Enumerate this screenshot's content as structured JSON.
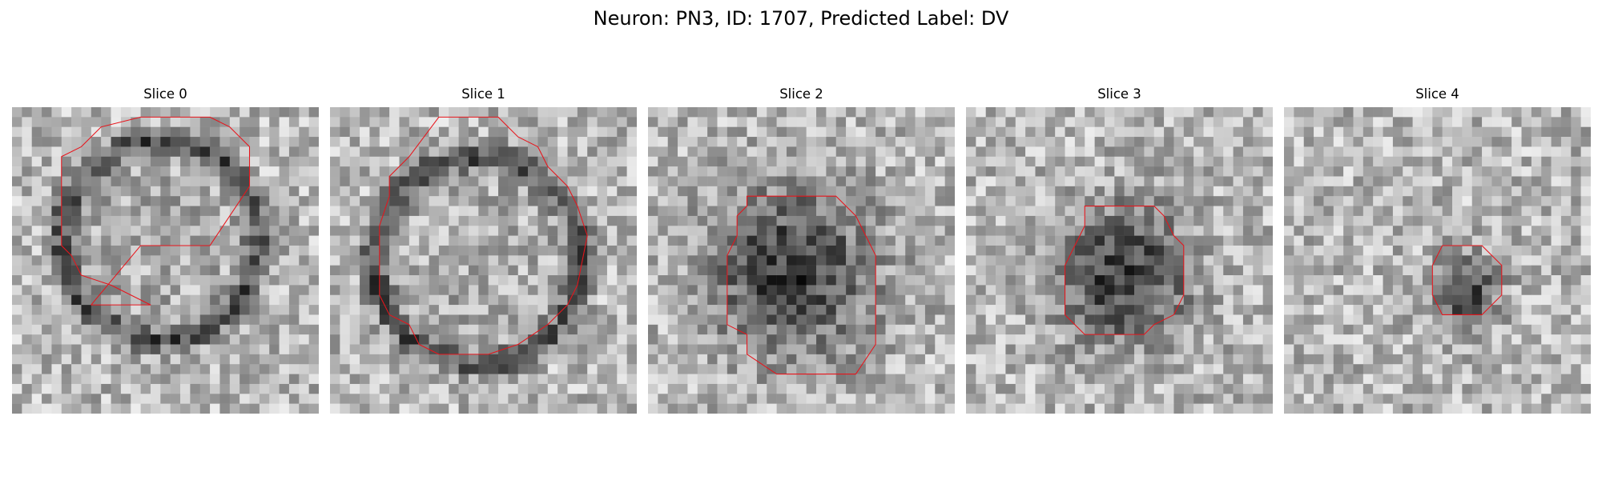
{
  "figure": {
    "title": "Neuron: PN3, ID: 1707, Predicted Label: DV",
    "colormap": "gray",
    "contour_color": "#e8141b",
    "grid_size": 31
  },
  "panels": [
    {
      "title": "Slice 0",
      "blob": {
        "cx": 15.0,
        "cy": 13.5,
        "r": 10.0,
        "ring": true
      },
      "contour": [
        [
          8,
          20
        ],
        [
          13,
          14
        ],
        [
          20,
          14
        ],
        [
          24,
          8
        ],
        [
          24,
          4
        ],
        [
          22,
          2
        ],
        [
          20,
          1
        ],
        [
          13,
          1
        ],
        [
          9,
          2
        ],
        [
          7,
          4
        ],
        [
          5,
          5
        ],
        [
          5,
          8
        ],
        [
          5,
          14
        ],
        [
          6,
          15
        ],
        [
          7,
          17
        ],
        [
          10,
          18
        ],
        [
          12,
          19
        ],
        [
          14,
          20
        ]
      ]
    },
    {
      "title": "Slice 1",
      "blob": {
        "cx": 15.0,
        "cy": 15.5,
        "r": 10.5,
        "ring": true
      },
      "contour": [
        [
          11,
          1
        ],
        [
          17,
          1
        ],
        [
          19,
          3
        ],
        [
          21,
          4
        ],
        [
          22,
          6
        ],
        [
          24,
          8
        ],
        [
          25,
          10
        ],
        [
          26,
          13
        ],
        [
          25,
          18
        ],
        [
          24,
          20
        ],
        [
          22,
          22
        ],
        [
          19,
          24
        ],
        [
          16,
          25
        ],
        [
          11,
          25
        ],
        [
          9,
          24
        ],
        [
          8,
          22
        ],
        [
          6,
          21
        ],
        [
          5,
          19
        ],
        [
          5,
          17
        ],
        [
          5,
          12
        ],
        [
          6,
          9
        ],
        [
          6,
          7
        ],
        [
          8,
          5
        ]
      ]
    },
    {
      "title": "Slice 2",
      "blob": {
        "cx": 14.5,
        "cy": 16.5,
        "r": 8.5,
        "ring": false
      },
      "contour": [
        [
          10,
          9
        ],
        [
          19,
          9
        ],
        [
          21,
          11
        ],
        [
          22,
          13
        ],
        [
          23,
          15
        ],
        [
          23,
          22
        ],
        [
          23,
          24
        ],
        [
          21,
          27
        ],
        [
          13,
          27
        ],
        [
          10,
          25
        ],
        [
          10,
          23
        ],
        [
          8,
          22
        ],
        [
          8,
          15
        ],
        [
          9,
          13
        ],
        [
          9,
          11
        ],
        [
          10,
          10
        ]
      ]
    },
    {
      "title": "Slice 3",
      "blob": {
        "cx": 16.0,
        "cy": 17.0,
        "r": 7.0,
        "ring": false
      },
      "contour": [
        [
          12,
          10
        ],
        [
          19,
          10
        ],
        [
          20,
          11
        ],
        [
          21,
          13
        ],
        [
          22,
          14
        ],
        [
          22,
          19
        ],
        [
          21,
          21
        ],
        [
          19,
          22
        ],
        [
          18,
          23
        ],
        [
          12,
          23
        ],
        [
          10,
          21
        ],
        [
          10,
          19
        ],
        [
          10,
          16
        ],
        [
          11,
          14
        ],
        [
          12,
          12
        ]
      ]
    },
    {
      "title": "Slice 4",
      "blob": {
        "cx": 18.0,
        "cy": 18.5,
        "r": 3.5,
        "ring": false
      },
      "contour": [
        [
          16,
          14
        ],
        [
          20,
          14
        ],
        [
          22,
          16
        ],
        [
          22,
          19
        ],
        [
          20,
          21
        ],
        [
          16,
          21
        ],
        [
          15,
          19
        ],
        [
          15,
          16
        ]
      ]
    }
  ]
}
